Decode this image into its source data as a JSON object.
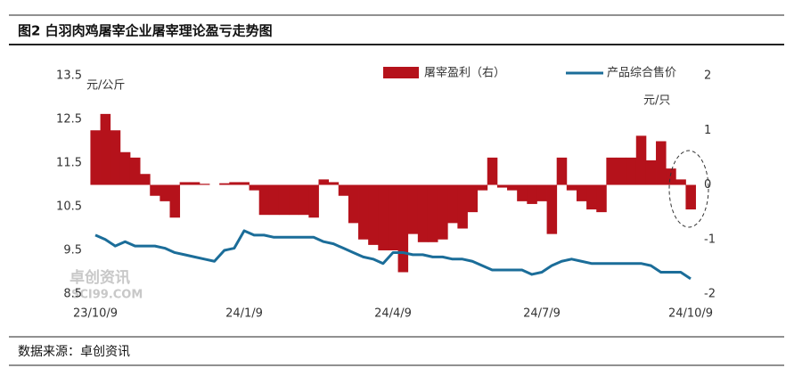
{
  "chart_data": {
    "type": "bar-line",
    "title": "图2 白羽肉鸡屠宰企业屠宰理论盈亏走势图",
    "source": "数据来源：卓创资讯",
    "y_unit": "元/公斤",
    "y2_unit": "元/只",
    "watermark": [
      "卓创资讯",
      "SCI99.COM"
    ],
    "categories": [
      "23/10/9",
      null,
      null,
      null,
      null,
      null,
      null,
      null,
      null,
      null,
      null,
      null,
      null,
      null,
      null,
      "24/1/9",
      null,
      null,
      null,
      null,
      null,
      null,
      null,
      null,
      null,
      null,
      null,
      null,
      null,
      null,
      "24/4/9",
      null,
      null,
      null,
      null,
      null,
      null,
      null,
      null,
      null,
      null,
      null,
      null,
      null,
      null,
      "24/7/9",
      null,
      null,
      null,
      null,
      null,
      null,
      null,
      null,
      null,
      null,
      null,
      null,
      null,
      null,
      "24/10/9"
    ],
    "ylim": [
      8.5,
      13.5
    ],
    "yticks": [
      8.5,
      9.5,
      10.5,
      11.5,
      12.5,
      13.5
    ],
    "y2lim": [
      -2,
      2
    ],
    "y2ticks": [
      -2,
      -1,
      0,
      1,
      2
    ],
    "series": [
      {
        "name": "屠宰盈利（右）",
        "type": "bar",
        "axis": "y2",
        "color": "#b5121b",
        "values": [
          1.0,
          1.3,
          1.0,
          0.6,
          0.5,
          0.2,
          -0.2,
          -0.3,
          -0.6,
          0.05,
          0.05,
          0.02,
          0.0,
          0.03,
          0.05,
          0.05,
          -0.1,
          -0.55,
          -0.55,
          -0.55,
          -0.55,
          -0.55,
          -0.6,
          0.1,
          0.05,
          -0.2,
          -0.7,
          -1.0,
          -1.1,
          -1.2,
          -1.2,
          -1.6,
          -0.9,
          -1.05,
          -1.05,
          -1.0,
          -0.7,
          -0.8,
          -0.5,
          -0.1,
          0.5,
          -0.05,
          -0.1,
          -0.3,
          -0.35,
          -0.3,
          -0.9,
          0.5,
          -0.1,
          -0.3,
          -0.45,
          -0.5,
          0.5,
          0.5,
          0.5,
          0.9,
          0.45,
          0.8,
          0.3,
          0.1,
          -0.45
        ]
      },
      {
        "name": "产品综合售价",
        "type": "line",
        "axis": "y",
        "color": "#1b6d99",
        "values": [
          9.85,
          9.75,
          9.6,
          9.7,
          9.6,
          9.6,
          9.6,
          9.55,
          9.45,
          9.4,
          9.35,
          9.3,
          9.25,
          9.5,
          9.55,
          9.95,
          9.85,
          9.85,
          9.8,
          9.8,
          9.8,
          9.8,
          9.8,
          9.7,
          9.65,
          9.55,
          9.45,
          9.35,
          9.3,
          9.2,
          9.45,
          9.45,
          9.4,
          9.4,
          9.35,
          9.35,
          9.3,
          9.3,
          9.25,
          9.15,
          9.05,
          9.05,
          9.05,
          9.05,
          8.95,
          9.0,
          9.15,
          9.25,
          9.3,
          9.25,
          9.2,
          9.2,
          9.2,
          9.2,
          9.2,
          9.2,
          9.15,
          9.0,
          9.0,
          9.0,
          8.85
        ]
      }
    ]
  }
}
